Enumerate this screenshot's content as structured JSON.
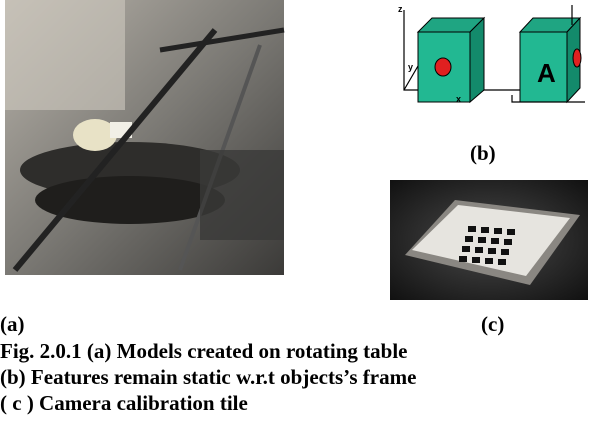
{
  "figure": {
    "panel_labels": [
      "(a)",
      "(b)",
      "(c)"
    ],
    "diagram_labels": {
      "z": "z",
      "y": "y",
      "x": "x",
      "letter": "A"
    },
    "caption": [
      "Fig. 2.0.1  (a) Models created on rotating table",
      "(b) Features remain static w.r.t objects’s frame",
      "( c ) Camera calibration tile"
    ]
  }
}
